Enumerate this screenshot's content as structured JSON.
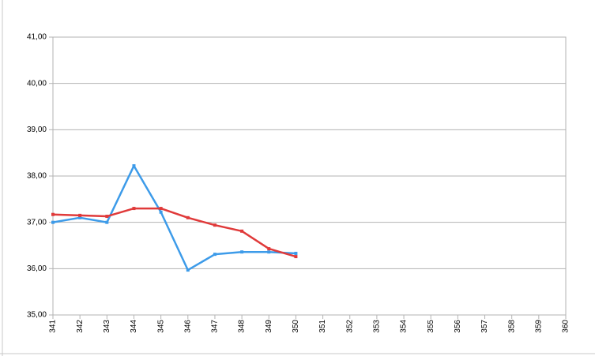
{
  "chart_data": {
    "type": "line",
    "x": [
      341,
      342,
      343,
      344,
      345,
      346,
      347,
      348,
      349,
      350
    ],
    "xlim": [
      341,
      360
    ],
    "xticks": [
      341,
      342,
      343,
      344,
      345,
      346,
      347,
      348,
      349,
      350,
      351,
      352,
      353,
      354,
      355,
      356,
      357,
      358,
      359,
      360
    ],
    "ylim": [
      35,
      41
    ],
    "yticks": [
      {
        "value": 35,
        "label": "35,00"
      },
      {
        "value": 36,
        "label": "36,00"
      },
      {
        "value": 37,
        "label": "37,00"
      },
      {
        "value": 38,
        "label": "38,00"
      },
      {
        "value": 39,
        "label": "39,00"
      },
      {
        "value": 40,
        "label": "40,00"
      },
      {
        "value": 41,
        "label": "41,00"
      }
    ],
    "grid": true,
    "series": [
      {
        "color": "#3d9be9",
        "values": [
          37.0,
          37.1,
          37.0,
          38.22,
          37.22,
          35.97,
          36.31,
          36.36,
          36.36,
          36.33
        ]
      },
      {
        "color": "#e03a3a",
        "values": [
          37.17,
          37.15,
          37.13,
          37.3,
          37.3,
          37.1,
          36.94,
          36.81,
          36.43,
          36.26
        ]
      }
    ]
  }
}
